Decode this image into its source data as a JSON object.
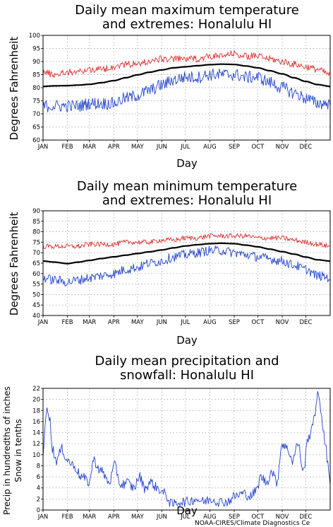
{
  "footer": {
    "credit": "NOAA-CIRES/Climate Diagnostics Ce"
  },
  "chart_data": [
    {
      "type": "line",
      "title": [
        "Daily mean maximum temperature",
        "and extremes: Honalulu HI"
      ],
      "xlabel": "Day",
      "ylabel": [
        "Degrees Fahrenheit"
      ],
      "xlim": [
        1,
        366
      ],
      "ylim": [
        60,
        100
      ],
      "yticks": [
        60,
        65,
        70,
        75,
        80,
        85,
        90,
        95,
        100
      ],
      "x_tick_labels": [
        "JAN",
        "FEB",
        "MAR",
        "APR",
        "MAY",
        "JUN",
        "JUL",
        "AUG",
        "SEP",
        "OCT",
        "NOV",
        "DEC"
      ],
      "x_tick_days": [
        1,
        32,
        60,
        91,
        121,
        152,
        182,
        213,
        244,
        274,
        305,
        335
      ],
      "grid": true,
      "x_knots": [
        1,
        15,
        32,
        46,
        60,
        75,
        91,
        106,
        121,
        136,
        152,
        167,
        182,
        197,
        213,
        228,
        244,
        259,
        274,
        289,
        305,
        320,
        335,
        350,
        366
      ],
      "series": [
        {
          "role": "record-high",
          "color": "#e03030",
          "values": [
            86,
            85,
            86,
            86,
            87,
            87,
            88,
            89,
            89,
            90,
            91,
            91,
            91,
            91,
            92,
            92,
            93,
            92,
            92,
            91,
            90,
            89,
            88,
            87,
            85
          ],
          "noise": 1.3
        },
        {
          "role": "mean",
          "color": "#000000",
          "values": [
            80.5,
            80.7,
            80.8,
            81.0,
            81.3,
            81.9,
            82.7,
            83.8,
            84.9,
            85.9,
            86.8,
            87.6,
            88.0,
            88.4,
            88.8,
            89.0,
            88.9,
            88.3,
            87.6,
            86.5,
            85.3,
            83.8,
            82.4,
            81.2,
            80.5
          ],
          "noise": 0
        },
        {
          "role": "record-low",
          "color": "#2244cc",
          "values": [
            73,
            73,
            73,
            73,
            74,
            74,
            74,
            76,
            77,
            79,
            81,
            83,
            84,
            84,
            85,
            85,
            85,
            84,
            84,
            82,
            80,
            78,
            76,
            74,
            74
          ],
          "noise": 2.4
        }
      ]
    },
    {
      "type": "line",
      "title": [
        "Daily mean minimum temperature",
        "and extremes: Honalulu HI"
      ],
      "xlabel": "Day",
      "ylabel": [
        "Degrees Fahrenheit"
      ],
      "xlim": [
        1,
        366
      ],
      "ylim": [
        40,
        90
      ],
      "yticks": [
        40,
        45,
        50,
        55,
        60,
        65,
        70,
        75,
        80,
        85,
        90
      ],
      "x_tick_labels": [
        "JAN",
        "FEB",
        "MAR",
        "APR",
        "MAY",
        "JUN",
        "JUL",
        "AUG",
        "SEP",
        "OCT",
        "NOV",
        "DEC"
      ],
      "x_tick_days": [
        1,
        32,
        60,
        91,
        121,
        152,
        182,
        213,
        244,
        274,
        305,
        335
      ],
      "grid": true,
      "x_knots": [
        1,
        15,
        32,
        46,
        60,
        75,
        91,
        106,
        121,
        136,
        152,
        167,
        182,
        197,
        213,
        228,
        244,
        259,
        274,
        289,
        305,
        320,
        335,
        350,
        366
      ],
      "series": [
        {
          "role": "record-high",
          "color": "#e03030",
          "values": [
            73,
            73,
            73,
            73,
            74,
            74,
            74,
            75,
            75,
            75,
            76,
            76,
            77,
            77,
            78,
            78,
            78,
            78,
            77,
            77,
            77,
            76,
            75,
            74,
            73
          ],
          "noise": 1.2
        },
        {
          "role": "mean",
          "color": "#000000",
          "values": [
            66.0,
            65.5,
            64.8,
            65.5,
            66.3,
            67.2,
            68.0,
            68.8,
            69.6,
            70.4,
            71.3,
            72.3,
            73.2,
            73.8,
            74.3,
            74.5,
            74.3,
            73.6,
            72.8,
            71.7,
            70.5,
            69.3,
            67.9,
            66.6,
            66.0
          ],
          "noise": 0
        },
        {
          "role": "record-low",
          "color": "#2244cc",
          "values": [
            58,
            57,
            56,
            57,
            58,
            59,
            60,
            62,
            63,
            65,
            66,
            68,
            69,
            70,
            71,
            71,
            70,
            69,
            68,
            67,
            66,
            64,
            62,
            59,
            58
          ],
          "noise": 2.3
        }
      ]
    },
    {
      "type": "line",
      "title": [
        "Daily mean precipitation and",
        "snowfall: Honalulu HI"
      ],
      "xlabel": "Day",
      "ylabel": [
        "Precip in hundredths of inches",
        "Snow in tenths"
      ],
      "xlim": [
        1,
        366
      ],
      "ylim": [
        0,
        22
      ],
      "yticks": [
        0,
        2,
        4,
        6,
        8,
        10,
        12,
        14,
        16,
        18,
        20,
        22
      ],
      "x_tick_labels": [
        "JAN",
        "FEB",
        "MAR",
        "APR",
        "MAY",
        "JUN",
        "JUL",
        "AUG",
        "SEP",
        "OCT",
        "NOV",
        "DEC"
      ],
      "x_tick_days": [
        1,
        32,
        60,
        91,
        121,
        152,
        182,
        213,
        244,
        274,
        305,
        335
      ],
      "grid": true,
      "x_knots": [
        1,
        3,
        6,
        9,
        13,
        18,
        25,
        32,
        40,
        50,
        60,
        65,
        75,
        85,
        92,
        100,
        108,
        116,
        124,
        130,
        138,
        146,
        155,
        165,
        175,
        185,
        195,
        205,
        215,
        225,
        235,
        245,
        255,
        265,
        272,
        278,
        285,
        292,
        298,
        305,
        312,
        318,
        325,
        332,
        338,
        345,
        350,
        354,
        357,
        360,
        363,
        366
      ],
      "series": [
        {
          "role": "precipitation",
          "color": "#2244cc",
          "values": [
            9,
            14,
            19,
            17,
            11,
            9,
            11,
            9,
            8,
            6,
            5,
            9,
            7,
            5,
            8,
            4.5,
            5,
            4,
            6,
            4,
            5,
            4,
            3,
            1,
            1.5,
            1.5,
            2,
            1.5,
            2,
            1.5,
            1.5,
            2.5,
            3,
            2.5,
            3.5,
            6,
            5,
            7,
            5,
            12,
            11,
            9,
            12,
            7,
            13,
            16,
            21,
            18,
            15,
            12,
            8,
            5
          ],
          "noise": 0.9
        },
        {
          "role": "snowfall",
          "color": "#e03030",
          "values": [
            0,
            0
          ],
          "noise": 0
        }
      ]
    }
  ]
}
